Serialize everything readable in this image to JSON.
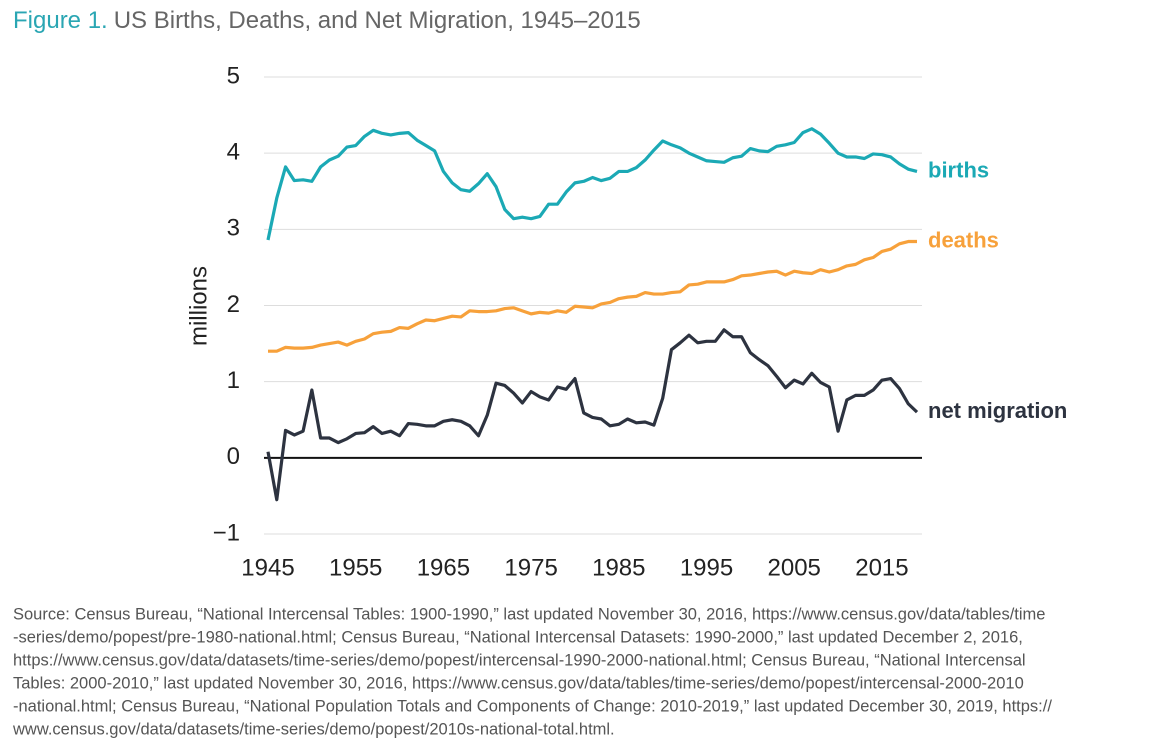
{
  "chart_data": {
    "type": "line",
    "figure_label": "Figure 1.",
    "title": "US Births, Deaths, and Net Migration, 1945–2015",
    "y_label": "millions",
    "x": [
      1945,
      1946,
      1947,
      1948,
      1949,
      1950,
      1951,
      1952,
      1953,
      1954,
      1955,
      1956,
      1957,
      1958,
      1959,
      1960,
      1961,
      1962,
      1963,
      1964,
      1965,
      1966,
      1967,
      1968,
      1969,
      1970,
      1971,
      1972,
      1973,
      1974,
      1975,
      1976,
      1977,
      1978,
      1979,
      1980,
      1981,
      1982,
      1983,
      1984,
      1985,
      1986,
      1987,
      1988,
      1989,
      1990,
      1991,
      1992,
      1993,
      1994,
      1995,
      1996,
      1997,
      1998,
      1999,
      2000,
      2001,
      2002,
      2003,
      2004,
      2005,
      2006,
      2007,
      2008,
      2009,
      2010,
      2011,
      2012,
      2013,
      2014,
      2015,
      2016,
      2017,
      2018,
      2019
    ],
    "xlim": [
      1945,
      2019
    ],
    "xticks": [
      1945,
      1955,
      1965,
      1975,
      1985,
      1995,
      2005,
      2015
    ],
    "ylim": [
      -1,
      5
    ],
    "yticks": [
      {
        "value": -1,
        "label": "−1"
      },
      0,
      1,
      2,
      3,
      4,
      5
    ],
    "grid": true,
    "series": [
      {
        "name": "births",
        "color": "#1ba9b5",
        "values": [
          2.86,
          3.41,
          3.82,
          3.64,
          3.65,
          3.63,
          3.82,
          3.91,
          3.96,
          4.08,
          4.1,
          4.22,
          4.3,
          4.26,
          4.24,
          4.26,
          4.27,
          4.17,
          4.1,
          4.03,
          3.76,
          3.61,
          3.52,
          3.5,
          3.6,
          3.73,
          3.56,
          3.26,
          3.14,
          3.16,
          3.14,
          3.17,
          3.33,
          3.33,
          3.49,
          3.61,
          3.63,
          3.68,
          3.64,
          3.67,
          3.76,
          3.76,
          3.81,
          3.91,
          4.04,
          4.16,
          4.11,
          4.07,
          4.0,
          3.95,
          3.9,
          3.89,
          3.88,
          3.94,
          3.96,
          4.06,
          4.03,
          4.02,
          4.09,
          4.11,
          4.14,
          4.27,
          4.32,
          4.25,
          4.13,
          4.0,
          3.95,
          3.95,
          3.93,
          3.99,
          3.98,
          3.95,
          3.86,
          3.79,
          3.76
        ]
      },
      {
        "name": "deaths",
        "color": "#f7a13b",
        "values": [
          1.4,
          1.4,
          1.45,
          1.44,
          1.44,
          1.45,
          1.48,
          1.5,
          1.52,
          1.48,
          1.53,
          1.56,
          1.63,
          1.65,
          1.66,
          1.71,
          1.7,
          1.76,
          1.81,
          1.8,
          1.83,
          1.86,
          1.85,
          1.93,
          1.92,
          1.92,
          1.93,
          1.96,
          1.97,
          1.93,
          1.89,
          1.91,
          1.9,
          1.93,
          1.91,
          1.99,
          1.98,
          1.97,
          2.02,
          2.04,
          2.09,
          2.11,
          2.12,
          2.17,
          2.15,
          2.15,
          2.17,
          2.18,
          2.27,
          2.28,
          2.31,
          2.31,
          2.31,
          2.34,
          2.39,
          2.4,
          2.42,
          2.44,
          2.45,
          2.4,
          2.45,
          2.43,
          2.42,
          2.47,
          2.44,
          2.47,
          2.52,
          2.54,
          2.6,
          2.63,
          2.71,
          2.74,
          2.81,
          2.84,
          2.84
        ]
      },
      {
        "name": "net migration",
        "color": "#2d3340",
        "values": [
          0.08,
          -0.55,
          0.36,
          0.3,
          0.35,
          0.89,
          0.26,
          0.26,
          0.2,
          0.25,
          0.32,
          0.33,
          0.41,
          0.32,
          0.35,
          0.29,
          0.45,
          0.44,
          0.42,
          0.42,
          0.48,
          0.5,
          0.48,
          0.42,
          0.29,
          0.56,
          0.98,
          0.95,
          0.85,
          0.72,
          0.87,
          0.8,
          0.76,
          0.93,
          0.9,
          1.04,
          0.59,
          0.53,
          0.51,
          0.42,
          0.44,
          0.51,
          0.46,
          0.47,
          0.43,
          0.78,
          1.42,
          1.51,
          1.61,
          1.51,
          1.53,
          1.53,
          1.68,
          1.59,
          1.59,
          1.38,
          1.29,
          1.21,
          1.07,
          0.92,
          1.02,
          0.97,
          1.11,
          0.99,
          0.93,
          0.35,
          0.76,
          0.82,
          0.82,
          0.89,
          1.02,
          1.04,
          0.91,
          0.71,
          0.6
        ]
      }
    ],
    "source_lines": [
      "Source: Census Bureau, “National Intercensal Tables: 1900-1990,” last updated November 30, 2016, https://www.census.gov/data/tables/time",
      "-series/demo/popest/pre-1980-national.html; Census Bureau, “National Intercensal Datasets: 1990-2000,” last updated December 2, 2016,",
      "https://www.census.gov/data/datasets/time-series/demo/popest/intercensal-1990-2000-national.html; Census Bureau, “National Intercensal",
      "Tables: 2000-2010,” last updated November 30, 2016, https://www.census.gov/data/tables/time-series/demo/popest/intercensal-2000-2010",
      "-national.html; Census Bureau, “National Population Totals and Components of Change: 2010-2019,” last updated December 30, 2019, https://",
      "www.census.gov/data/datasets/time-series/demo/popest/2010s-national-total.html."
    ]
  }
}
